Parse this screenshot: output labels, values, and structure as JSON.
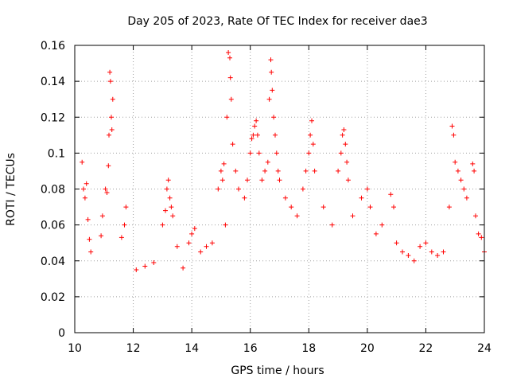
{
  "chart_data": {
    "type": "scatter",
    "title": "Day 205 of 2023, Rate Of TEC Index for receiver dae3",
    "xlabel": "GPS time / hours",
    "ylabel": "ROTI / TECUs",
    "xlim": [
      10,
      24
    ],
    "ylim": [
      0,
      0.16
    ],
    "x_ticks": [
      "10",
      "12",
      "14",
      "16",
      "18",
      "20",
      "22",
      "24"
    ],
    "y_ticks": [
      "0",
      "0.02",
      "0.04",
      "0.06",
      "0.08",
      "0.1",
      "0.12",
      "0.14",
      "0.16"
    ],
    "grid": true,
    "marker": "plus",
    "series": [
      {
        "color": "#ff0000",
        "points": [
          [
            10.25,
            0.095
          ],
          [
            10.3,
            0.08
          ],
          [
            10.35,
            0.075
          ],
          [
            10.4,
            0.083
          ],
          [
            10.45,
            0.063
          ],
          [
            10.5,
            0.052
          ],
          [
            10.55,
            0.045
          ],
          [
            10.9,
            0.054
          ],
          [
            10.95,
            0.065
          ],
          [
            11.05,
            0.08
          ],
          [
            11.1,
            0.078
          ],
          [
            11.15,
            0.093
          ],
          [
            11.17,
            0.11
          ],
          [
            11.2,
            0.145
          ],
          [
            11.22,
            0.14
          ],
          [
            11.25,
            0.12
          ],
          [
            11.27,
            0.113
          ],
          [
            11.3,
            0.13
          ],
          [
            11.6,
            0.053
          ],
          [
            11.7,
            0.06
          ],
          [
            11.75,
            0.07
          ],
          [
            12.1,
            0.035
          ],
          [
            12.4,
            0.037
          ],
          [
            12.7,
            0.039
          ],
          [
            13.0,
            0.06
          ],
          [
            13.1,
            0.068
          ],
          [
            13.15,
            0.08
          ],
          [
            13.2,
            0.085
          ],
          [
            13.25,
            0.075
          ],
          [
            13.3,
            0.07
          ],
          [
            13.35,
            0.065
          ],
          [
            13.5,
            0.048
          ],
          [
            13.7,
            0.036
          ],
          [
            13.9,
            0.05
          ],
          [
            14.0,
            0.055
          ],
          [
            14.1,
            0.058
          ],
          [
            14.3,
            0.045
          ],
          [
            14.5,
            0.048
          ],
          [
            14.7,
            0.05
          ],
          [
            14.9,
            0.08
          ],
          [
            15.0,
            0.09
          ],
          [
            15.05,
            0.085
          ],
          [
            15.1,
            0.094
          ],
          [
            15.15,
            0.06
          ],
          [
            15.2,
            0.12
          ],
          [
            15.25,
            0.156
          ],
          [
            15.3,
            0.153
          ],
          [
            15.32,
            0.142
          ],
          [
            15.35,
            0.13
          ],
          [
            15.4,
            0.105
          ],
          [
            15.5,
            0.09
          ],
          [
            15.6,
            0.08
          ],
          [
            15.8,
            0.075
          ],
          [
            15.9,
            0.085
          ],
          [
            16.0,
            0.1
          ],
          [
            16.05,
            0.108
          ],
          [
            16.1,
            0.11
          ],
          [
            16.15,
            0.115
          ],
          [
            16.2,
            0.118
          ],
          [
            16.25,
            0.11
          ],
          [
            16.3,
            0.1
          ],
          [
            16.4,
            0.085
          ],
          [
            16.5,
            0.09
          ],
          [
            16.6,
            0.095
          ],
          [
            16.65,
            0.13
          ],
          [
            16.7,
            0.152
          ],
          [
            16.72,
            0.145
          ],
          [
            16.75,
            0.135
          ],
          [
            16.8,
            0.12
          ],
          [
            16.85,
            0.11
          ],
          [
            16.9,
            0.1
          ],
          [
            16.95,
            0.09
          ],
          [
            17.0,
            0.085
          ],
          [
            17.2,
            0.075
          ],
          [
            17.4,
            0.07
          ],
          [
            17.6,
            0.065
          ],
          [
            17.8,
            0.08
          ],
          [
            17.9,
            0.09
          ],
          [
            18.0,
            0.1
          ],
          [
            18.05,
            0.11
          ],
          [
            18.1,
            0.118
          ],
          [
            18.15,
            0.105
          ],
          [
            18.2,
            0.09
          ],
          [
            18.5,
            0.07
          ],
          [
            18.8,
            0.06
          ],
          [
            19.0,
            0.09
          ],
          [
            19.1,
            0.1
          ],
          [
            19.15,
            0.11
          ],
          [
            19.2,
            0.113
          ],
          [
            19.25,
            0.105
          ],
          [
            19.3,
            0.095
          ],
          [
            19.35,
            0.085
          ],
          [
            19.5,
            0.065
          ],
          [
            19.8,
            0.075
          ],
          [
            20.0,
            0.08
          ],
          [
            20.1,
            0.07
          ],
          [
            20.3,
            0.055
          ],
          [
            20.5,
            0.06
          ],
          [
            20.8,
            0.077
          ],
          [
            20.9,
            0.07
          ],
          [
            21.0,
            0.05
          ],
          [
            21.2,
            0.045
          ],
          [
            21.4,
            0.043
          ],
          [
            21.6,
            0.04
          ],
          [
            21.8,
            0.048
          ],
          [
            22.0,
            0.05
          ],
          [
            22.2,
            0.045
          ],
          [
            22.4,
            0.043
          ],
          [
            22.6,
            0.045
          ],
          [
            22.8,
            0.07
          ],
          [
            22.9,
            0.115
          ],
          [
            22.95,
            0.11
          ],
          [
            23.0,
            0.095
          ],
          [
            23.1,
            0.09
          ],
          [
            23.2,
            0.085
          ],
          [
            23.3,
            0.08
          ],
          [
            23.4,
            0.075
          ],
          [
            23.6,
            0.094
          ],
          [
            23.65,
            0.09
          ],
          [
            23.7,
            0.065
          ],
          [
            23.8,
            0.055
          ],
          [
            23.9,
            0.053
          ],
          [
            24.0,
            0.045
          ]
        ]
      }
    ]
  }
}
